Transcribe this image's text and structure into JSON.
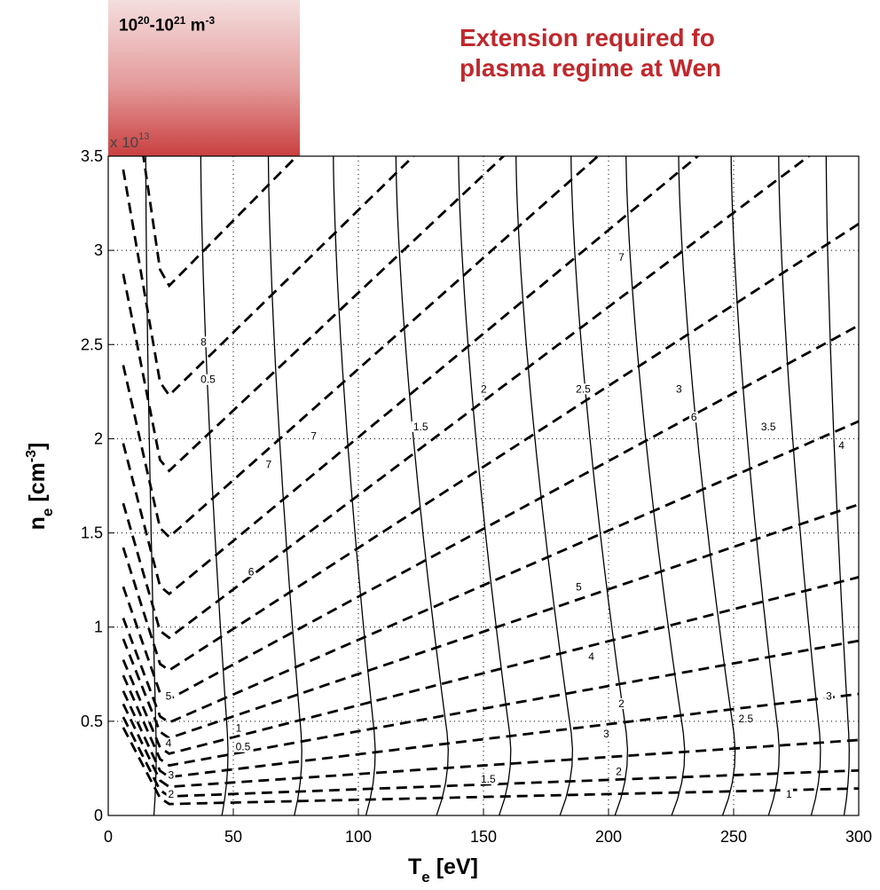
{
  "annotations": {
    "density_range": {
      "base1": "10",
      "exp1": "20",
      "sep": "-",
      "base2": "10",
      "exp2": "21",
      "unit": " m",
      "unit_exp": "-3"
    },
    "headline_line1": "Extension required fo",
    "headline_line2": "plasma regime at Wen"
  },
  "colors": {
    "headline": "#c0282c",
    "box_top": "#f4dede",
    "box_bottom": "#c94040"
  },
  "chart_data": {
    "type": "contour",
    "xlabel": {
      "main": "T",
      "sub": "e",
      "unit": " [eV]"
    },
    "ylabel": {
      "main": "n",
      "sub": "e",
      "unit": " [cm",
      "unit_exp": "-3",
      "unit_end": "]"
    },
    "y_multiplier": {
      "base": "x 10",
      "exp": "13"
    },
    "xlim": [
      0,
      300
    ],
    "ylim": [
      0,
      3.5
    ],
    "grid": true,
    "x_ticks": [
      0,
      50,
      100,
      150,
      200,
      250,
      300
    ],
    "y_ticks": [
      0,
      0.5,
      1,
      1.5,
      2,
      2.5,
      3,
      3.5
    ],
    "solid_contour_levels": [
      "0.5",
      "1",
      "1.5",
      "2",
      "2.5",
      "3",
      "3.5",
      "4"
    ],
    "dashed_contour_levels": [
      "2",
      "3",
      "4",
      "5",
      "6",
      "7",
      "8"
    ],
    "solid_contours": {
      "description": "near-vertical iso-lines",
      "x_at_top": [
        15,
        37,
        64,
        90,
        115,
        140,
        163,
        185,
        207,
        228,
        249,
        268,
        287
      ],
      "x_at_bottom": [
        20,
        50,
        80,
        110,
        140,
        165,
        190,
        212,
        235,
        255,
        272,
        288,
        298
      ]
    },
    "dashed_contours": {
      "description": "U-shaped iso-lines",
      "y_at_min": [
        0.06,
        0.1,
        0.15,
        0.2,
        0.26,
        0.32,
        0.4,
        0.48,
        0.6,
        0.75,
        0.92,
        1.15,
        1.45,
        1.8,
        2.2,
        2.78
      ],
      "slope": [
        0.03,
        0.05,
        0.09,
        0.16,
        0.24,
        0.34,
        0.45,
        0.58,
        0.72,
        0.86,
        1.0,
        1.1,
        1.18,
        1.25,
        1.3,
        1.35
      ]
    },
    "contour_labels": [
      {
        "text": "2",
        "x": 25,
        "y": 0.1
      },
      {
        "text": "3",
        "x": 25,
        "y": 0.2
      },
      {
        "text": "4",
        "x": 24,
        "y": 0.37
      },
      {
        "text": "5",
        "x": 24,
        "y": 0.62
      },
      {
        "text": "6",
        "x": 57,
        "y": 1.28
      },
      {
        "text": "7",
        "x": 64,
        "y": 1.85
      },
      {
        "text": "7",
        "x": 82,
        "y": 2.0
      },
      {
        "text": "7",
        "x": 205,
        "y": 2.95
      },
      {
        "text": "6",
        "x": 234,
        "y": 2.1
      },
      {
        "text": "5",
        "x": 188,
        "y": 1.2
      },
      {
        "text": "4",
        "x": 193,
        "y": 0.83
      },
      {
        "text": "3",
        "x": 199,
        "y": 0.42
      },
      {
        "text": "2",
        "x": 204,
        "y": 0.22
      },
      {
        "text": "8",
        "x": 38,
        "y": 2.5
      },
      {
        "text": "0.5",
        "x": 38,
        "y": 2.3
      },
      {
        "text": "0.5",
        "x": 52,
        "y": 0.35
      },
      {
        "text": "1",
        "x": 52,
        "y": 0.45
      },
      {
        "text": "1.5",
        "x": 123,
        "y": 2.05
      },
      {
        "text": "2",
        "x": 150,
        "y": 2.25
      },
      {
        "text": "2.5",
        "x": 188,
        "y": 2.25
      },
      {
        "text": "3",
        "x": 228,
        "y": 2.25
      },
      {
        "text": "3.5",
        "x": 262,
        "y": 2.05
      },
      {
        "text": "4",
        "x": 293,
        "y": 1.95
      },
      {
        "text": "2",
        "x": 205,
        "y": 0.58
      },
      {
        "text": "2.5",
        "x": 253,
        "y": 0.5
      },
      {
        "text": "3",
        "x": 288,
        "y": 0.62
      },
      {
        "text": "1.5",
        "x": 150,
        "y": 0.18
      },
      {
        "text": "1",
        "x": 272,
        "y": 0.1
      }
    ]
  }
}
